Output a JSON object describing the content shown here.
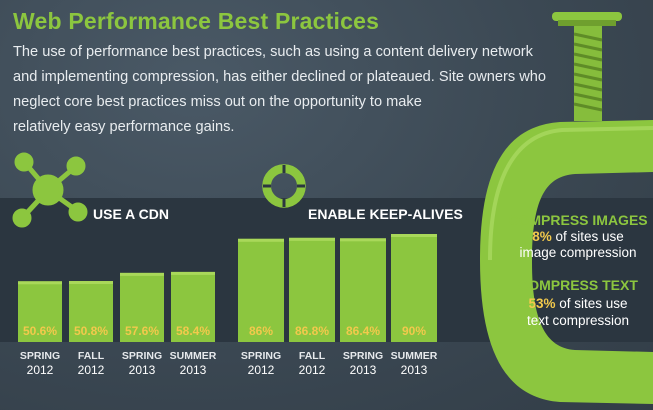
{
  "header": {
    "title": "Web Performance Best Practices",
    "desc_lines": [
      "The use of performance best practices, such as using a content delivery network",
      "and implementing compression, has either declined or plateaued. Site owners who",
      "neglect core best practices miss out on the opportunity to make",
      "relatively easy performance gains."
    ]
  },
  "colors": {
    "accent": "#8cc63f",
    "value_label": "#f2c94c",
    "background": "#3d4a56",
    "band": "#2b3640"
  },
  "icons": {
    "cdn": "network-nodes-icon",
    "keepalive": "life-ring-icon",
    "compress": "c-clamp-icon"
  },
  "chart_data": [
    {
      "type": "bar",
      "title": "USE A CDN",
      "categories": [
        "SPRING 2012",
        "FALL 2012",
        "SPRING 2013",
        "SUMMER 2013"
      ],
      "season": [
        "SPRING",
        "FALL",
        "SPRING",
        "SUMMER"
      ],
      "year": [
        "2012",
        "2012",
        "2013",
        "2013"
      ],
      "values": [
        50.6,
        50.8,
        57.6,
        58.4
      ],
      "labels": [
        "50.6%",
        "50.8%",
        "57.6%",
        "58.4%"
      ],
      "ylim": [
        0,
        100
      ]
    },
    {
      "type": "bar",
      "title": "ENABLE KEEP-ALIVES",
      "categories": [
        "SPRING 2012",
        "FALL 2012",
        "SPRING 2013",
        "SUMMER 2013"
      ],
      "season": [
        "SPRING",
        "FALL",
        "SPRING",
        "SUMMER"
      ],
      "year": [
        "2012",
        "2012",
        "2013",
        "2013"
      ],
      "values": [
        86,
        86.8,
        86.4,
        90
      ],
      "labels": [
        "86%",
        "86.8%",
        "86.4%",
        "90%"
      ],
      "ylim": [
        0,
        100
      ]
    }
  ],
  "compress": {
    "images": {
      "heading": "COMPRESS IMAGES",
      "pct": "8%",
      "line1": " of sites use",
      "line2": "image compression"
    },
    "text": {
      "heading": "COMPRESS TEXT",
      "pct": "53%",
      "line1": " of sites use",
      "line2": "text compression"
    }
  }
}
